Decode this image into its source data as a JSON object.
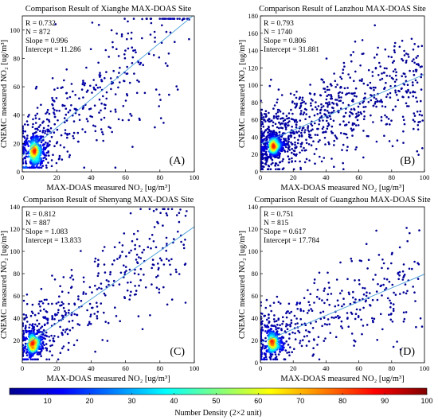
{
  "figure": {
    "colorbar": {
      "label": "Number Density  (2×2 unit)",
      "ticks": [
        "10",
        "20",
        "30",
        "40",
        "50",
        "60",
        "70",
        "80",
        "90",
        "100"
      ],
      "range": [
        1,
        100
      ],
      "colormap": [
        "#00008f",
        "#0000ff",
        "#0080ff",
        "#00ffff",
        "#80ff80",
        "#ffff00",
        "#ff8000",
        "#ff0000",
        "#800000"
      ]
    }
  },
  "chart_data": [
    {
      "type": "scatter",
      "id": "A",
      "title": "Comparison Result of Xianghe MAX-DOAS Site",
      "xlabel": "MAX-DOAS measured NO₂ [ug/m³]",
      "ylabel": "CNEMC measured NO₂ [ug/m³]",
      "xlim": [
        0,
        100
      ],
      "ylim": [
        0,
        110
      ],
      "xticks": [
        "0",
        "20",
        "40",
        "60",
        "80",
        "100"
      ],
      "yticks": [
        "0",
        "20",
        "40",
        "60",
        "80",
        "100"
      ],
      "stats": [
        "R = 0.732",
        "N = 872",
        "Slope = 0.996",
        "Intercept = 11.286"
      ],
      "panel_label": "(A)",
      "fit": {
        "slope": 0.996,
        "intercept": 11.286
      },
      "n": 872,
      "cluster": [
        5,
        14
      ],
      "spread": [
        11,
        12
      ],
      "maxx": 97
    },
    {
      "type": "scatter",
      "id": "B",
      "title": "Comparison Result of Lanzhou MAX-DOAS Site",
      "xlabel": "MAX-DOAS measured NO₂ [ug/m³]",
      "ylabel": "CNEMC measured NO₂ [ug/m³]",
      "xlim": [
        0,
        100
      ],
      "ylim": [
        0,
        180
      ],
      "xticks": [
        "0",
        "20",
        "40",
        "60",
        "80",
        "100"
      ],
      "yticks": [
        "0",
        "20",
        "40",
        "60",
        "80",
        "100",
        "120",
        "140",
        "160",
        "180"
      ],
      "stats": [
        "R = 0.793",
        "N = 1740",
        "Slope = 0.806",
        "Intercept = 31.881"
      ],
      "panel_label": "(B)",
      "fit": {
        "slope": 0.806,
        "intercept": 31.881
      },
      "n": 1740,
      "cluster": [
        6,
        30
      ],
      "spread": [
        22,
        18
      ],
      "maxx": 99
    },
    {
      "type": "scatter",
      "id": "C",
      "title": "Comparison Result of Shenyang MAX-DOAS Site",
      "xlabel": "MAX-DOAS measured NO₂ [ug/m³]",
      "ylabel": "CNEMC measured NO₂ [ug/m³]",
      "xlim": [
        0,
        100
      ],
      "ylim": [
        0,
        140
      ],
      "xticks": [
        "0",
        "20",
        "40",
        "60",
        "80",
        "100"
      ],
      "yticks": [
        "20",
        "40",
        "60",
        "80",
        "100",
        "120",
        "140"
      ],
      "stats": [
        "R = 0.812",
        "N = 887",
        "Slope = 1.083",
        "Intercept = 13.833"
      ],
      "panel_label": "(C)",
      "fit": {
        "slope": 1.083,
        "intercept": 13.833
      },
      "n": 887,
      "cluster": [
        4,
        17
      ],
      "spread": [
        14,
        14
      ],
      "maxx": 96
    },
    {
      "type": "scatter",
      "id": "D",
      "title": "Comparison Result of Guangzhou MAX-DOAS Site",
      "xlabel": "MAX-DOAS measured NO₂ [ug/m³]",
      "ylabel": "CNEMC measured NO₂ [ug/m³]",
      "xlim": [
        0,
        100
      ],
      "ylim": [
        0,
        140
      ],
      "xticks": [
        "0",
        "20",
        "40",
        "60",
        "80",
        "100"
      ],
      "yticks": [
        "0",
        "20",
        "40",
        "60",
        "80",
        "100",
        "120",
        "140"
      ],
      "stats": [
        "R = 0.751",
        "N = 815",
        "Slope = 0.617",
        "Intercept = 17.784"
      ],
      "panel_label": "(D)",
      "fit": {
        "slope": 0.617,
        "intercept": 17.784
      },
      "n": 815,
      "cluster": [
        5,
        18
      ],
      "spread": [
        16,
        13
      ],
      "maxx": 99
    }
  ]
}
